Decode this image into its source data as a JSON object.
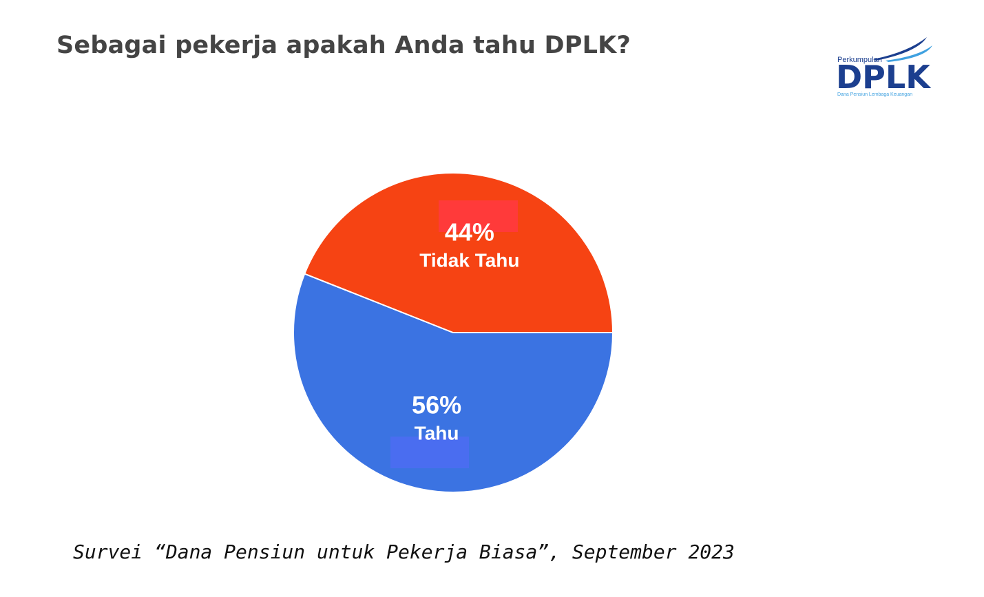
{
  "title": "Sebagai pekerja apakah Anda tahu DPLK?",
  "logo": {
    "top": "Perkumpulan",
    "main": "DPLK",
    "tagline": "Dana Pensiun Lembaga Keuangan",
    "colors": {
      "navy": "#1c3f8f",
      "sky": "#3fa1e0"
    }
  },
  "chart_data": {
    "type": "pie",
    "title": "Sebagai pekerja apakah Anda tahu DPLK?",
    "slices": [
      {
        "label": "Tahu",
        "value": 56,
        "display": "56%",
        "color": "#3b73e2"
      },
      {
        "label": "Tidak Tahu",
        "value": 44,
        "display": "44%",
        "color": "#f64313"
      }
    ],
    "start_angle_deg": 90,
    "direction": "clockwise",
    "legend": "none",
    "labels_inside": true
  },
  "caption": "Survei “Dana Pensiun untuk Pekerja Biasa”, September 2023"
}
